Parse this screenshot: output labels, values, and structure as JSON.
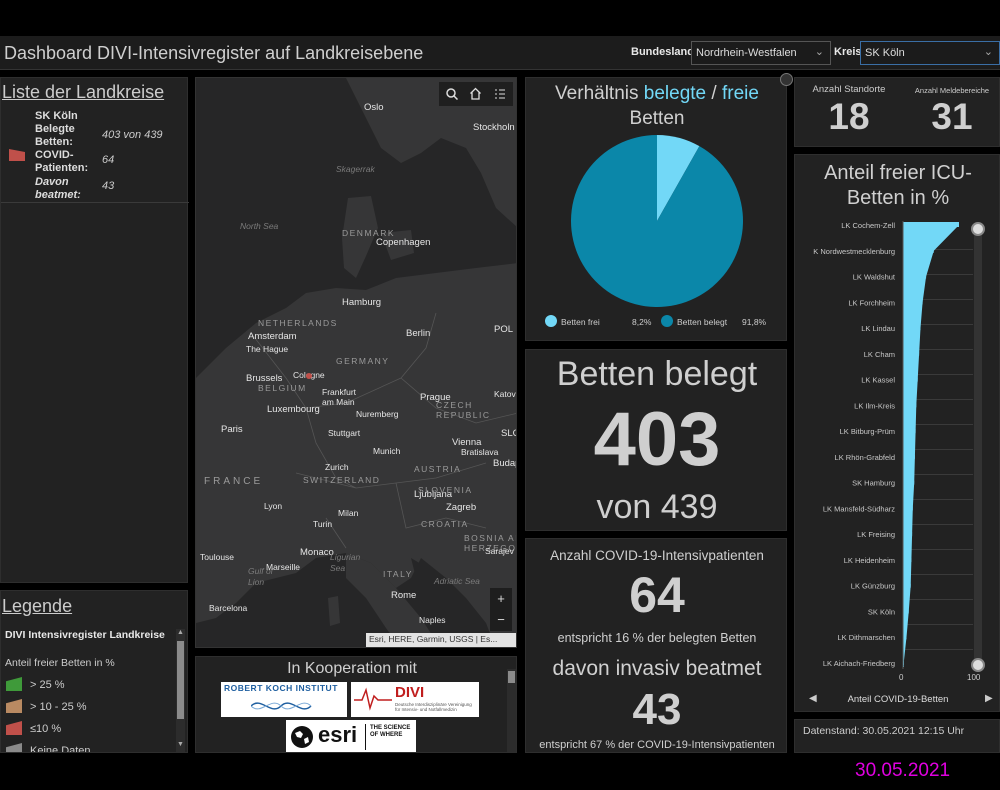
{
  "header": {
    "title": "Dashboard DIVI-Intensivregister auf Landkreisebene",
    "bundesland_label": "Bundesland",
    "bundesland_value": "Nordrhein-Westfalen",
    "kreis_label": "Kreis",
    "kreis_value": "SK Köln"
  },
  "list": {
    "title": "Liste der Landkreise",
    "item_name": "SK Köln",
    "key1": "Belegte Betten:",
    "val1": "403 von 439",
    "key2": "COVID-Patienten:",
    "val2": "64",
    "key3": "Davon beatmet:",
    "val3": "43",
    "marker_color": "#c0504a"
  },
  "legend": {
    "title": "Legende",
    "layer": "DIVI Intensivregister Landkreise",
    "subtitle": "Anteil freier Betten in %",
    "items": [
      {
        "label": "> 25 %",
        "color": "#3f9a3a"
      },
      {
        "label": "> 10 - 25 %",
        "color": "#b98a62"
      },
      {
        "label": "≤10 %",
        "color": "#c0504a"
      },
      {
        "label": "Keine Daten",
        "color": "#8a8a8a"
      }
    ]
  },
  "map": {
    "attribution": "Esri, HERE, Garmin, USGS | Es...",
    "labels": {
      "oslo": "Oslo",
      "stockholm": "Stockholn",
      "skagerrak": "Skagerrak",
      "north_sea": "North Sea",
      "denmark": "DENMARK",
      "copenhagen": "Copenhagen",
      "hamburg": "Hamburg",
      "berlin": "Berlin",
      "netherlands": "NETHERLANDS",
      "amsterdam": "Amsterdam",
      "the_hague": "The Hague",
      "germany": "GERMANY",
      "pol": "POL",
      "brussels": "Brussels",
      "cologne": "Cologne",
      "belgium": "BELGIUM",
      "frankfurt": "Frankfurt\nam Main",
      "prague": "Prague",
      "czech": "CZECH\nREPUBLIC",
      "katow": "Katov",
      "luxembourg": "Luxembourg",
      "nuremberg": "Nuremberg",
      "paris": "Paris",
      "stuttgart": "Stuttgart",
      "slo": "SLO",
      "vienna": "Vienna",
      "bratislava": "Bratislava",
      "munich": "Munich",
      "buda": "Budap",
      "austria": "AUSTRIA",
      "france": "FRANCE",
      "zurich": "Zurich",
      "switzerland": "SWITZERLAND",
      "ljubljana": "Ljubljana",
      "slovenia": "SLOVENIA",
      "lyon": "Lyon",
      "zagreb": "Zagreb",
      "milan": "Milan",
      "croatia": "CROATIA",
      "turin": "Turin",
      "bosnia": "BOSNIA AND\nHERZEGOVINA",
      "sarajevo": "Sarajev",
      "toulouse": "Toulouse",
      "monaco": "Monaco",
      "ligurian": "Ligurian\nSea",
      "gulf_lion": "Gulf of\nLion",
      "marseille": "Marseille",
      "italy": "ITALY",
      "adriatic": "Adriatic Sea",
      "barcelona": "Barcelona",
      "rome": "Rome",
      "naples": "Naples"
    }
  },
  "pie": {
    "title_prefix": "Verhältnis",
    "title_belegte": "belegte",
    "title_sep": "/",
    "title_freie": "freie",
    "title_line2": "Betten",
    "legend_frei": "Betten frei",
    "legend_frei_pct": "8,2%",
    "legend_belegt": "Betten belegt",
    "legend_belegt_pct": "91,8%",
    "color_frei": "#72d8f7",
    "color_belegt": "#0b87a9"
  },
  "beds": {
    "title": "Betten belegt",
    "value": "403",
    "sub": "von 439"
  },
  "covid": {
    "title": "Anzahl COVID-19-Intensivpatienten",
    "value": "64",
    "sub": "entspricht 16 % der belegten Betten",
    "title2": "davon invasiv beatmet",
    "value2": "43",
    "sub2": "entspricht 67 % der COVID-19-Intensivpatienten"
  },
  "counts": {
    "standorte_label": "Anzahl Standorte",
    "standorte_value": "18",
    "melde_label": "Anzahl Meldebereiche",
    "melde_value": "31"
  },
  "cooperation": {
    "title": "In Kooperation mit",
    "rki": "ROBERT KOCH INSTITUT",
    "divi": "DIVI",
    "divi_sub": "Deutsche Interdisziplinäre Vereinigung\nfür Intensiv- und Notfallmedizin",
    "esri": "esri",
    "esri_tag": "THE SCIENCE OF WHERE"
  },
  "icu_chart": {
    "title": "Anteil freier ICU-Betten in %",
    "tab_label": "Anteil COVID-19-Betten",
    "stand": "Datenstand: 30.05.2021 12:15 Uhr"
  },
  "chart_data": {
    "type": "bar",
    "title": "Anteil freier ICU-Betten in %",
    "orientation": "horizontal",
    "color": "#72d8f7",
    "xlim": [
      0,
      100
    ],
    "xticks": [
      "0",
      "100"
    ],
    "categories": [
      "LK Cochem-Zell",
      "K Nordwestmecklenburg",
      "LK Waldshut",
      "LK Forchheim",
      "LK Lindau",
      "LK Cham",
      "LK Kassel",
      "LK Ilm-Kreis",
      "LK Bitburg-Prüm",
      "LK Rhön-Grabfeld",
      "SK Hamburg",
      "LK Mansfeld-Südharz",
      "LK Freising",
      "LK Heidenheim",
      "LK Günzburg",
      "SK Köln",
      "LK Dithmarschen",
      "LK Aichach-Friedberg"
    ],
    "values": [
      80,
      44,
      33,
      28,
      25,
      23,
      21,
      19,
      18,
      17,
      16,
      14,
      13,
      12,
      11,
      8.2,
      5,
      1
    ]
  },
  "footer": {
    "date": "30.05.2021",
    "date_color": "#e000e0"
  }
}
